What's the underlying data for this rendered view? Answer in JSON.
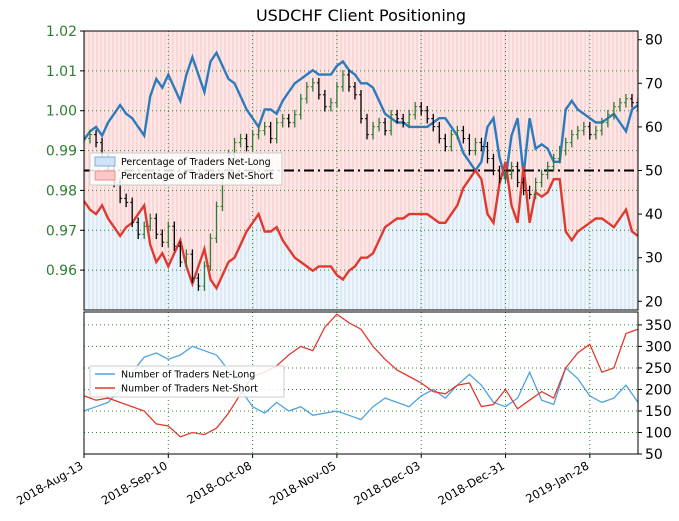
{
  "chart_data": [
    {
      "type": "line",
      "title": "USDCHF Client Positioning",
      "ylim_left": [
        0.95,
        1.02
      ],
      "ylim_right": [
        18,
        82
      ],
      "left_ticks": [
        "1.02",
        "1.01",
        "1.00",
        "0.99",
        "0.98",
        "0.97",
        "0.96"
      ],
      "left_tick_values": [
        1.02,
        1.01,
        1.0,
        0.99,
        0.98,
        0.97,
        0.96
      ],
      "right_ticks": [
        "80",
        "70",
        "60",
        "50",
        "40",
        "30",
        "20"
      ],
      "right_tick_values": [
        80,
        70,
        60,
        50,
        40,
        30,
        20
      ],
      "reference_line": {
        "value": 50,
        "style": "dash-dot"
      },
      "legend": {
        "placement": "center-left",
        "entries": [
          "Percentage of Traders Net-Long",
          "Percentage of Traders Net-Short"
        ]
      },
      "price_series": {
        "name": "USDCHF price",
        "colors": {
          "up": "#2e7d32",
          "down": "#000000"
        },
        "t": [
          0,
          2,
          4,
          6,
          8,
          10,
          12,
          14,
          16,
          18,
          20,
          22,
          24,
          26,
          28,
          30,
          32,
          34,
          36,
          38,
          40,
          42,
          44,
          46,
          48,
          50,
          52,
          54,
          56,
          58,
          60,
          62,
          64,
          66,
          68,
          70,
          72,
          74,
          76,
          78,
          80,
          82,
          84,
          86,
          88,
          90,
          92,
          94,
          96,
          98,
          100,
          102,
          104,
          106,
          108,
          110,
          112,
          114,
          116,
          118,
          120,
          122,
          124,
          126,
          128,
          130,
          132,
          134,
          136,
          138,
          140,
          142,
          144,
          146,
          148,
          150,
          152,
          154,
          156,
          158,
          160,
          162,
          164,
          166,
          168,
          170,
          172,
          174,
          176,
          178,
          180,
          182,
          184
        ],
        "values": [
          0.993,
          0.994,
          0.992,
          0.988,
          0.986,
          0.982,
          0.978,
          0.977,
          0.972,
          0.969,
          0.971,
          0.973,
          0.969,
          0.967,
          0.971,
          0.966,
          0.962,
          0.964,
          0.958,
          0.956,
          0.961,
          0.968,
          0.976,
          0.984,
          0.989,
          0.992,
          0.993,
          0.991,
          0.994,
          0.995,
          0.996,
          0.993,
          0.997,
          0.998,
          0.997,
          0.999,
          1.003,
          1.006,
          1.007,
          1.004,
          1.001,
          1.002,
          1.006,
          1.009,
          1.006,
          1.004,
          0.998,
          0.994,
          0.996,
          0.997,
          0.995,
          0.999,
          0.998,
          0.997,
          0.999,
          1.001,
          1.0,
          0.998,
          0.996,
          0.993,
          0.991,
          0.994,
          0.995,
          0.993,
          0.99,
          0.992,
          0.991,
          0.988,
          0.985,
          0.983,
          0.984,
          0.986,
          0.982,
          0.98,
          0.979,
          0.982,
          0.984,
          0.986,
          0.988,
          0.99,
          0.992,
          0.994,
          0.995,
          0.996,
          0.994,
          0.995,
          0.997,
          0.999,
          1.001,
          1.002,
          1.003,
          1.002,
          1.001
        ]
      },
      "series": [
        {
          "name": "Percentage of Traders Net-Long",
          "color": "#2b7bbd",
          "t": [
            0,
            2,
            4,
            6,
            8,
            10,
            12,
            14,
            16,
            18,
            20,
            22,
            24,
            26,
            28,
            30,
            32,
            34,
            36,
            38,
            40,
            42,
            44,
            46,
            48,
            50,
            52,
            54,
            56,
            58,
            60,
            62,
            64,
            66,
            68,
            70,
            72,
            74,
            76,
            78,
            80,
            82,
            84,
            86,
            88,
            90,
            92,
            94,
            96,
            98,
            100,
            102,
            104,
            106,
            108,
            110,
            112,
            114,
            116,
            118,
            120,
            122,
            124,
            126,
            128,
            130,
            132,
            134,
            136,
            138,
            140,
            142,
            144,
            146,
            148,
            150,
            152,
            154,
            156,
            158,
            160,
            162,
            164,
            166,
            168,
            170,
            172,
            174,
            176,
            178,
            180,
            182,
            184
          ],
          "values": [
            57,
            59,
            60,
            58,
            61,
            63,
            65,
            63,
            62,
            60,
            58,
            67,
            71,
            69,
            72,
            69,
            66,
            72,
            76,
            72,
            68,
            75,
            77,
            74,
            71,
            70,
            67,
            64,
            62,
            60,
            64,
            64,
            63,
            66,
            68,
            70,
            71,
            72,
            73,
            72,
            72,
            72,
            74,
            75,
            73,
            72,
            70,
            70,
            69,
            66,
            63,
            62,
            61,
            61,
            60,
            60,
            60,
            60,
            61,
            62,
            62,
            60,
            58,
            54,
            52,
            50,
            52,
            60,
            62,
            53,
            48,
            58,
            62,
            49,
            62,
            55,
            56,
            55,
            52,
            52,
            64,
            66,
            64,
            63,
            62,
            61,
            61,
            62,
            63,
            61,
            59,
            64,
            65
          ]
        },
        {
          "name": "Percentage of Traders Net-Short",
          "color": "#e03a2f",
          "t": [
            0,
            2,
            4,
            6,
            8,
            10,
            12,
            14,
            16,
            18,
            20,
            22,
            24,
            26,
            28,
            30,
            32,
            34,
            36,
            38,
            40,
            42,
            44,
            46,
            48,
            50,
            52,
            54,
            56,
            58,
            60,
            62,
            64,
            66,
            68,
            70,
            72,
            74,
            76,
            78,
            80,
            82,
            84,
            86,
            88,
            90,
            92,
            94,
            96,
            98,
            100,
            102,
            104,
            106,
            108,
            110,
            112,
            114,
            116,
            118,
            120,
            122,
            124,
            126,
            128,
            130,
            132,
            134,
            136,
            138,
            140,
            142,
            144,
            146,
            148,
            150,
            152,
            154,
            156,
            158,
            160,
            162,
            164,
            166,
            168,
            170,
            172,
            174,
            176,
            178,
            180,
            182,
            184
          ],
          "values": [
            43,
            41,
            40,
            42,
            39,
            37,
            35,
            37,
            38,
            40,
            42,
            33,
            29,
            31,
            28,
            31,
            34,
            28,
            24,
            28,
            32,
            25,
            23,
            26,
            29,
            30,
            33,
            36,
            38,
            40,
            36,
            36,
            37,
            34,
            32,
            30,
            29,
            28,
            27,
            28,
            28,
            28,
            26,
            25,
            27,
            28,
            30,
            30,
            31,
            34,
            37,
            38,
            39,
            39,
            40,
            40,
            40,
            40,
            39,
            38,
            38,
            40,
            42,
            46,
            48,
            50,
            48,
            40,
            38,
            47,
            52,
            42,
            38,
            51,
            38,
            45,
            44,
            45,
            48,
            48,
            36,
            34,
            36,
            37,
            38,
            39,
            39,
            38,
            37,
            39,
            41,
            36,
            35
          ]
        }
      ]
    },
    {
      "type": "line",
      "ylim": [
        50,
        380
      ],
      "right_ticks": [
        "350",
        "300",
        "250",
        "200",
        "150",
        "100",
        "50"
      ],
      "right_tick_values": [
        350,
        300,
        250,
        200,
        150,
        100,
        50
      ],
      "x_tick_labels": [
        "2018-Aug-13",
        "2018-Sep-10",
        "2018-Oct-08",
        "2018-Nov-05",
        "2018-Dec-03",
        "2018-Dec-31",
        "2019-Jan-28"
      ],
      "x_tick_values": [
        0,
        28,
        56,
        84,
        112,
        140,
        168
      ],
      "x_range": [
        0,
        184
      ],
      "legend": {
        "placement": "center-left",
        "entries": [
          "Number of Traders Net-Long",
          "Number of Traders Net-Short"
        ]
      },
      "series": [
        {
          "name": "Number of Traders Net-Long",
          "color": "#4da3e0",
          "t": [
            0,
            4,
            8,
            12,
            16,
            20,
            24,
            28,
            32,
            36,
            40,
            44,
            48,
            52,
            56,
            60,
            64,
            68,
            72,
            76,
            80,
            84,
            88,
            92,
            96,
            100,
            104,
            108,
            112,
            116,
            120,
            124,
            128,
            132,
            136,
            140,
            144,
            148,
            152,
            156,
            160,
            164,
            168,
            172,
            176,
            180,
            184
          ],
          "values": [
            150,
            160,
            170,
            200,
            240,
            275,
            285,
            270,
            280,
            300,
            290,
            280,
            245,
            200,
            160,
            145,
            170,
            150,
            160,
            140,
            145,
            150,
            140,
            130,
            160,
            180,
            170,
            160,
            185,
            200,
            180,
            210,
            235,
            210,
            170,
            160,
            180,
            240,
            175,
            165,
            250,
            225,
            185,
            170,
            180,
            210,
            170
          ]
        },
        {
          "name": "Number of Traders Net-Short",
          "color": "#e03a2f",
          "t": [
            0,
            4,
            8,
            12,
            16,
            20,
            24,
            28,
            32,
            36,
            40,
            44,
            48,
            52,
            56,
            60,
            64,
            68,
            72,
            76,
            80,
            84,
            88,
            92,
            96,
            100,
            104,
            108,
            112,
            116,
            120,
            124,
            128,
            132,
            136,
            140,
            144,
            148,
            152,
            156,
            160,
            164,
            168,
            172,
            176,
            180,
            184
          ],
          "values": [
            185,
            175,
            180,
            170,
            160,
            150,
            120,
            115,
            90,
            100,
            95,
            110,
            145,
            190,
            230,
            240,
            255,
            280,
            300,
            290,
            345,
            375,
            355,
            340,
            300,
            270,
            245,
            230,
            215,
            195,
            190,
            210,
            215,
            160,
            165,
            200,
            155,
            175,
            195,
            180,
            250,
            285,
            305,
            240,
            250,
            330,
            340
          ]
        }
      ]
    }
  ]
}
